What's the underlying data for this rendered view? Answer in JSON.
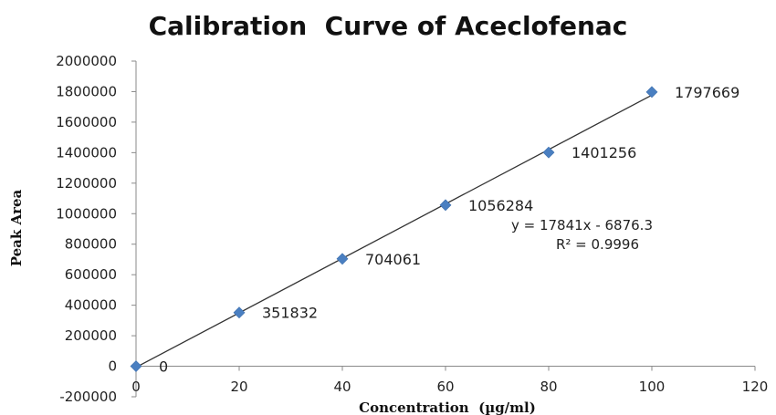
{
  "chart_data": {
    "type": "scatter",
    "title": "Calibration  Curve of Aceclofenac",
    "xlabel": "Concentration  (µg/ml)",
    "ylabel": "Peak Area",
    "xlim": [
      0,
      120
    ],
    "ylim": [
      -200000,
      2000000
    ],
    "x_ticks": [
      "0",
      "20",
      "40",
      "60",
      "80",
      "100",
      "120"
    ],
    "y_ticks": [
      "-200000",
      "0",
      "200000",
      "400000",
      "600000",
      "800000",
      "1000000",
      "1200000",
      "1400000",
      "1600000",
      "1800000",
      "2000000"
    ],
    "series": [
      {
        "x": [
          0,
          20,
          40,
          60,
          80,
          100
        ],
        "y": [
          0,
          351832,
          704061,
          1056284,
          1401256,
          1797669
        ],
        "labels": [
          "0",
          "351832",
          "704061",
          "1056284",
          "1401256",
          "1797669"
        ],
        "marker": "diamond",
        "color": "#4a7fc1"
      }
    ],
    "trendline": {
      "type": "linear",
      "slope": 17841,
      "intercept": -6876.3,
      "color": "#333333"
    },
    "equation_lines": [
      "y = 17841x - 6876.3",
      "R² = 0.9996"
    ],
    "grid": false,
    "legend": "none"
  }
}
